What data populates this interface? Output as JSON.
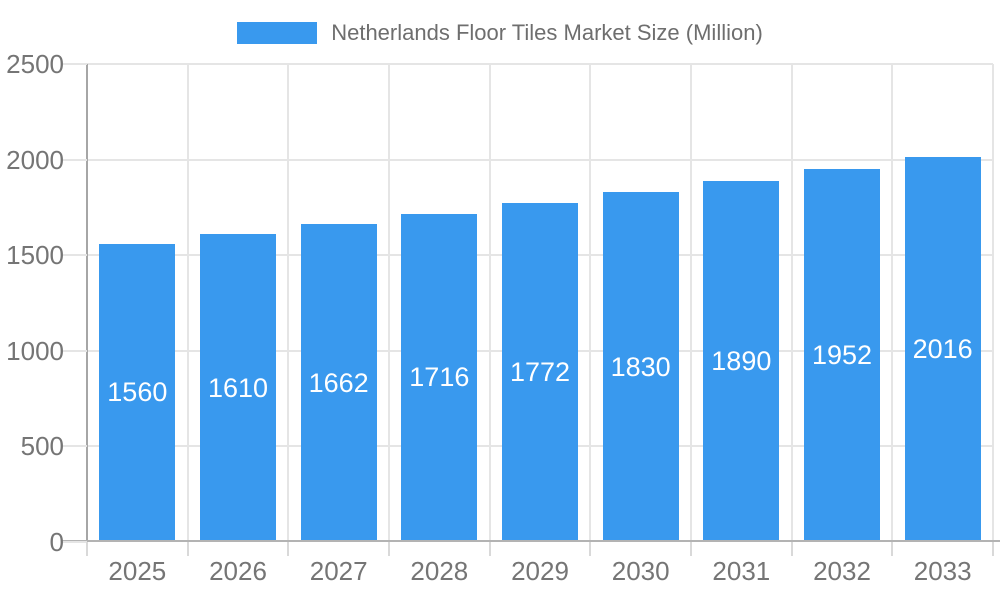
{
  "colors": {
    "bar": "#3999ee",
    "bar_label": "#ffffff",
    "axis_text": "#757575",
    "legend_text": "#6e6e6e",
    "grid": "#e5e5e5",
    "axis_line": "#a6a6a6",
    "baseline": "#b3b3b3",
    "tick": "#d9d9d9"
  },
  "legend": {
    "label": "Netherlands Floor Tiles Market Size (Million)"
  },
  "chart_data": {
    "type": "bar",
    "title": "Netherlands Floor Tiles Market Size (Million)",
    "categories": [
      "2025",
      "2026",
      "2027",
      "2028",
      "2029",
      "2030",
      "2031",
      "2032",
      "2033"
    ],
    "values": [
      1560,
      1610,
      1662,
      1716,
      1772,
      1830,
      1890,
      1952,
      2016
    ],
    "xlabel": "",
    "ylabel": "",
    "ylim": [
      0,
      2500
    ],
    "yticks": [
      0,
      500,
      1000,
      1500,
      2000,
      2500
    ],
    "grid": true,
    "legend_position": "top",
    "bar_value_labels": true
  }
}
